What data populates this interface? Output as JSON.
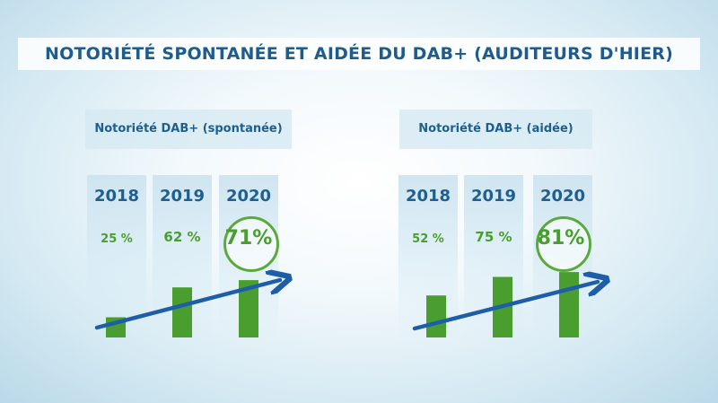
{
  "title": "NOTORIÉTÉ SPONTANÉE ET AIDÉE DU DAB+ (AUDITEURS D'HIER)",
  "colors": {
    "bar": "#4a9d2f",
    "arrow": "#1e5ea8",
    "title": "#1e5c8e",
    "value": "#4a9d2f"
  },
  "chart_data": [
    {
      "type": "bar",
      "title": "Notoriété DAB+ (spontanée)",
      "categories": [
        "2018",
        "2019",
        "2020"
      ],
      "values": [
        25,
        62,
        71
      ],
      "value_labels": [
        "25 %",
        "62 %",
        "71%"
      ],
      "highlighted_category": "2020",
      "trend_arrow": true,
      "ylim": [
        0,
        100
      ]
    },
    {
      "type": "bar",
      "title": "Notoriété DAB+ (aidée)",
      "categories": [
        "2018",
        "2019",
        "2020"
      ],
      "values": [
        52,
        75,
        81
      ],
      "value_labels": [
        "52 %",
        "75 %",
        "81%"
      ],
      "highlighted_category": "2020",
      "trend_arrow": true,
      "ylim": [
        0,
        100
      ]
    }
  ]
}
